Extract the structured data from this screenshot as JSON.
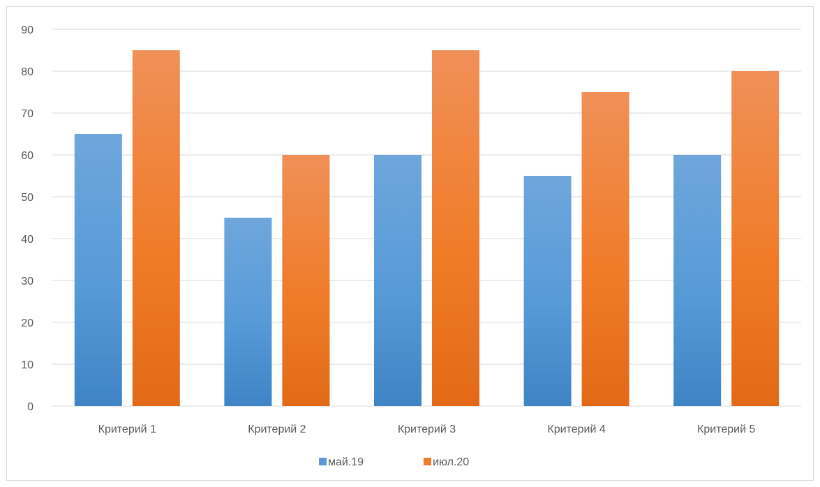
{
  "chart_data": {
    "type": "bar",
    "title": "",
    "xlabel": "",
    "ylabel": "",
    "categories": [
      "Критерий 1",
      "Критерий 2",
      "Критерий 3",
      "Критерий 4",
      "Критерий 5"
    ],
    "series": [
      {
        "name": "май.19",
        "values": [
          65,
          45,
          60,
          55,
          60
        ],
        "color": "#5b9bd5"
      },
      {
        "name": "июл.20",
        "values": [
          85,
          60,
          85,
          75,
          80
        ],
        "color": "#ed7d31"
      }
    ],
    "ylim": [
      0,
      90
    ],
    "yticks": [
      0,
      10,
      20,
      30,
      40,
      50,
      60,
      70,
      80,
      90
    ],
    "grid": true,
    "legend": "bottom"
  }
}
